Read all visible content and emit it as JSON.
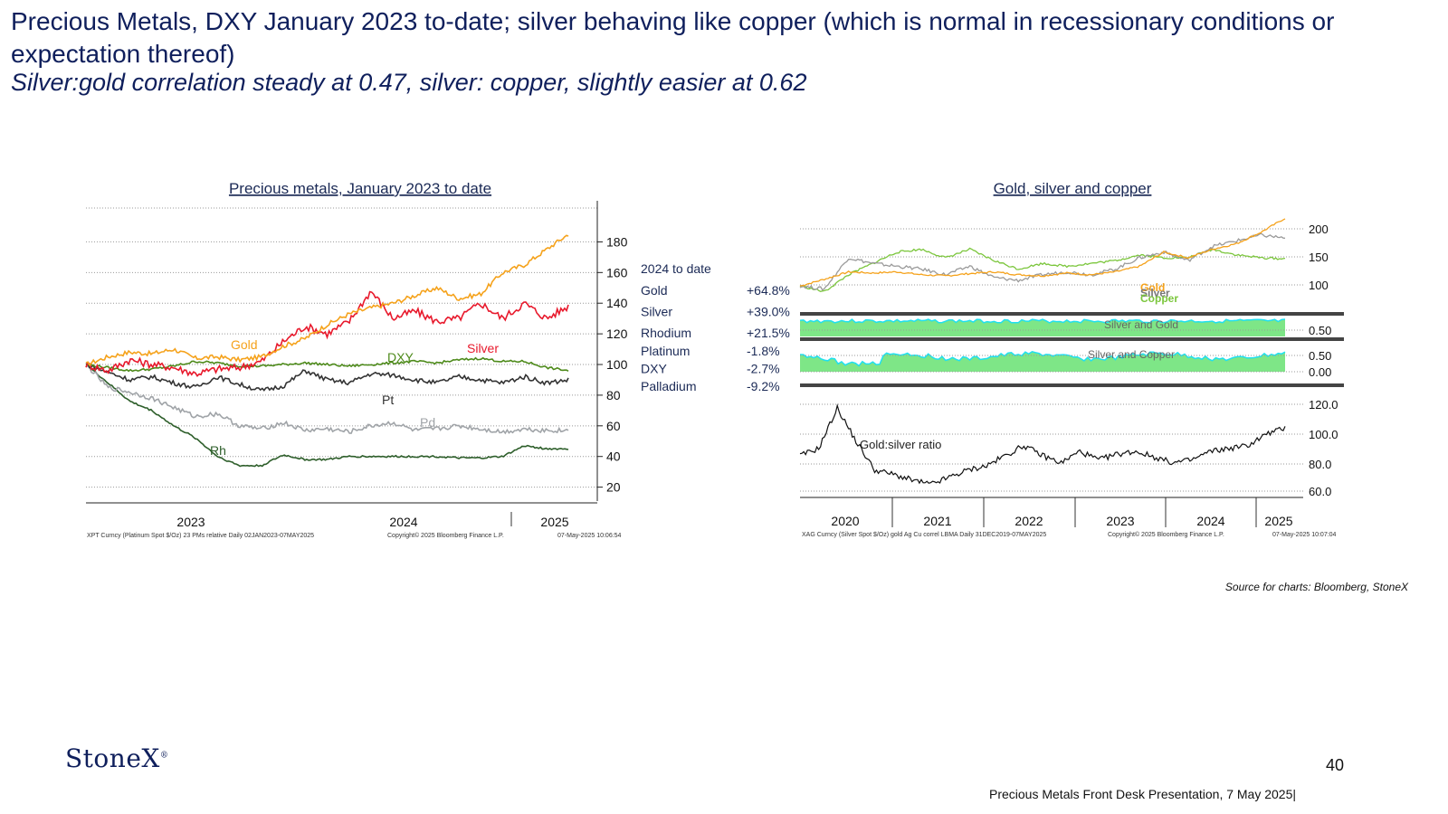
{
  "title": "Precious Metals, DXY January 2023 to-date; silver behaving like copper (which is normal in recessionary conditions or expectation thereof)",
  "subtitle": "Silver:gold correlation steady at 0.47, silver: copper, slightly easier at 0.62",
  "source": "Source for charts: Bloomberg, StoneX",
  "logo": "StoneX",
  "page_number": "40",
  "footer": "Precious Metals Front Desk Presentation, 7 May 2025|",
  "colors": {
    "gold": "#f5a21b",
    "silver": "#e8192c",
    "dxy": "#4d8a1a",
    "platinum": "#333333",
    "palladium": "#a0a4a8",
    "rhodium": "#2d5e2a",
    "copper": "#7bc63c",
    "silver_line": "#9a9a9a",
    "corr_fill": "#7ee687",
    "corr_line": "#20e0f0",
    "title_blue": "#0f1f5c"
  },
  "chart_data": [
    {
      "type": "line",
      "title": "Precious metals, January 2023 to date",
      "x_ticks": [
        "2023",
        "2024",
        "2025"
      ],
      "yticks": [
        20,
        40,
        60,
        80,
        100,
        120,
        140,
        160,
        180
      ],
      "ylim": [
        18,
        195
      ],
      "grid": true,
      "footnote_left": "XPT Curncy (Platinum Spot $/Oz) 23 PMs relative Daily 02JAN2023-07MAY2025",
      "footnote_mid": "Copyright© 2025 Bloomberg Finance L.P.",
      "footnote_right": "07-May-2025 10:06:54",
      "series": [
        {
          "name": "Gold",
          "color": "#f5a21b",
          "values": [
            100,
            105,
            108,
            107,
            110,
            104,
            105,
            103,
            105,
            112,
            117,
            126,
            133,
            137,
            140,
            145,
            150,
            143,
            146,
            160,
            165,
            175,
            185
          ]
        },
        {
          "name": "Silver",
          "color": "#e8192c",
          "values": [
            100,
            96,
            103,
            100,
            98,
            94,
            97,
            98,
            102,
            115,
            125,
            120,
            128,
            148,
            130,
            135,
            128,
            130,
            140,
            130,
            140,
            130,
            138
          ]
        },
        {
          "name": "DXY",
          "color": "#4d8a1a",
          "values": [
            100,
            98,
            96,
            97,
            99,
            102,
            101,
            99,
            99,
            100,
            101,
            100,
            99,
            100,
            101,
            102,
            101,
            103,
            104,
            102,
            102,
            98,
            96
          ]
        },
        {
          "name": "Pt",
          "color": "#333333",
          "values": [
            100,
            95,
            90,
            92,
            88,
            85,
            92,
            87,
            83,
            86,
            96,
            90,
            88,
            94,
            93,
            90,
            88,
            92,
            90,
            88,
            92,
            88,
            90
          ]
        },
        {
          "name": "Pd",
          "color": "#a0a4a8",
          "values": [
            100,
            85,
            82,
            78,
            72,
            66,
            68,
            60,
            58,
            62,
            57,
            58,
            56,
            60,
            62,
            57,
            58,
            60,
            58,
            56,
            58,
            57,
            57
          ]
        },
        {
          "name": "Rh",
          "color": "#2d5e2a",
          "values": [
            100,
            88,
            76,
            70,
            60,
            52,
            40,
            34,
            34,
            41,
            38,
            38,
            40,
            40,
            40,
            40,
            40,
            39,
            39,
            40,
            47,
            45,
            45
          ]
        }
      ],
      "inline_labels": [
        "Gold",
        "Silver",
        "DXY",
        "Pt",
        "Pd",
        "Rh"
      ],
      "performance_table": {
        "header": "2024 to date",
        "rows": [
          {
            "name": "Gold",
            "value": "+64.8%"
          },
          {
            "name": "Silver",
            "value": "+39.0%"
          },
          {
            "name": "Rhodium",
            "value": "+21.5%"
          },
          {
            "name": "Platinum",
            "value": "-1.8%"
          },
          {
            "name": "DXY",
            "value": "-2.7%"
          },
          {
            "name": "Palladium",
            "value": "-9.2%"
          }
        ]
      }
    },
    {
      "type": "line",
      "title": "Gold, silver and copper",
      "x_ticks": [
        "2020",
        "2021",
        "2022",
        "2023",
        "2024",
        "2025"
      ],
      "footnote_left": "XAG Curncy (Silver Spot $/Oz) gold Ag Cu correl LBMA Daily 31DEC2019-07MAY2025",
      "footnote_mid": "Copyright© 2025 Bloomberg Finance L.P.",
      "footnote_right": "07-May-2025 10:07:04",
      "panels": [
        {
          "name": "prices",
          "yticks": [
            100,
            150,
            200
          ],
          "ylim": [
            70,
            230
          ],
          "legend": [
            "Gold",
            "Silver",
            "Copper"
          ],
          "series": [
            {
              "name": "Gold",
              "color": "#f5a21b",
              "values": [
                100,
                112,
                125,
                123,
                125,
                120,
                118,
                122,
                125,
                120,
                118,
                123,
                120,
                125,
                135,
                160,
                150,
                165,
                175,
                195,
                220
              ]
            },
            {
              "name": "Silver",
              "color": "#9a9a9a",
              "values": [
                100,
                95,
                150,
                140,
                135,
                130,
                120,
                135,
                115,
                110,
                120,
                125,
                120,
                130,
                150,
                160,
                145,
                170,
                180,
                190,
                185
              ]
            },
            {
              "name": "Copper",
              "color": "#7bc63c",
              "values": [
                100,
                90,
                120,
                140,
                160,
                165,
                150,
                165,
                145,
                130,
                140,
                135,
                140,
                145,
                155,
                150,
                150,
                165,
                155,
                150,
                148
              ]
            }
          ]
        },
        {
          "name": "Silver and Gold",
          "label": "Silver and Gold",
          "ytick": "0.50"
        },
        {
          "name": "Silver and Copper",
          "label": "Silver and Copper",
          "yticks": [
            "0.50",
            "0.00"
          ]
        },
        {
          "name": "Gold:silver ratio",
          "label": "Gold:silver ratio",
          "yticks": [
            "120.0",
            "100.0",
            "80.0",
            "60.0"
          ],
          "ylim": [
            56,
            125
          ],
          "values": [
            85,
            90,
            118,
            95,
            75,
            72,
            68,
            65,
            70,
            75,
            78,
            85,
            92,
            85,
            80,
            88,
            82,
            86,
            88,
            84,
            80,
            82,
            88,
            90,
            92,
            100,
            104
          ]
        }
      ]
    }
  ]
}
